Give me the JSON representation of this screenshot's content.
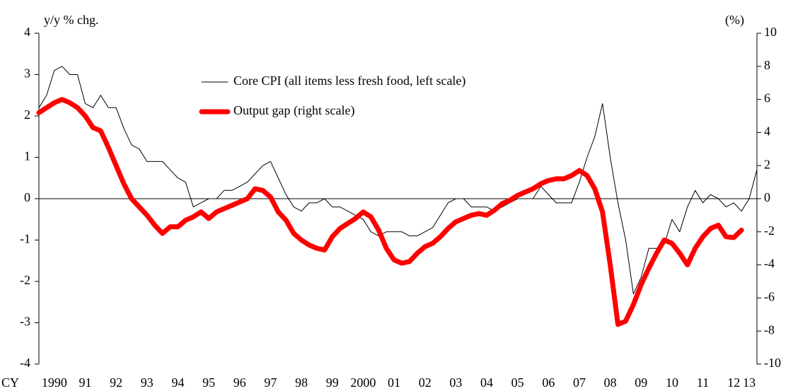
{
  "chart_data": {
    "type": "line",
    "y_label": "y/y % chg.",
    "y2_label": "(%)",
    "x_label": "CY",
    "categories": [
      null,
      null,
      "1990",
      null,
      null,
      null,
      "91",
      null,
      null,
      null,
      "92",
      null,
      null,
      null,
      "93",
      null,
      null,
      null,
      "94",
      null,
      null,
      null,
      "95",
      null,
      null,
      null,
      "96",
      null,
      null,
      null,
      "97",
      null,
      null,
      null,
      "98",
      null,
      null,
      null,
      "99",
      null,
      null,
      null,
      "2000",
      null,
      null,
      null,
      "01",
      null,
      null,
      null,
      "02",
      null,
      null,
      null,
      "03",
      null,
      null,
      null,
      "04",
      null,
      null,
      null,
      "05",
      null,
      null,
      null,
      "06",
      null,
      null,
      null,
      "07",
      null,
      null,
      null,
      "08",
      null,
      null,
      null,
      "09",
      null,
      null,
      null,
      "10",
      null,
      null,
      null,
      "11",
      null,
      null,
      null,
      "12",
      null,
      "13",
      null
    ],
    "series": [
      {
        "name": "Core CPI (all items less fresh food, left scale)",
        "color": "#000000",
        "width": 1,
        "values": [
          2.2,
          2.5,
          3.1,
          3.2,
          3.0,
          3.0,
          2.3,
          2.2,
          2.5,
          2.2,
          2.2,
          1.7,
          1.3,
          1.2,
          0.9,
          0.9,
          0.9,
          0.7,
          0.5,
          0.4,
          -0.2,
          -0.1,
          0.0,
          0.0,
          0.2,
          0.2,
          0.3,
          0.4,
          0.6,
          0.8,
          0.9,
          0.5,
          0.1,
          -0.2,
          -0.3,
          -0.1,
          -0.1,
          0.0,
          -0.2,
          -0.2,
          -0.3,
          -0.4,
          -0.5,
          -0.8,
          -0.9,
          -0.8,
          -0.8,
          -0.8,
          -0.9,
          -0.9,
          -0.8,
          -0.7,
          -0.4,
          -0.1,
          0.0,
          0.0,
          -0.2,
          -0.2,
          -0.2,
          -0.3,
          -0.2,
          -0.1,
          0.0,
          0.0,
          0.0,
          0.3,
          0.1,
          -0.1,
          -0.1,
          -0.1,
          0.4,
          1.0,
          1.5,
          2.3,
          1.0,
          -0.1,
          -1.0,
          -2.3,
          -1.9,
          -1.2,
          -1.2,
          -1.1,
          -0.5,
          -0.8,
          -0.2,
          0.2,
          -0.1,
          0.1,
          0.0,
          -0.2,
          -0.1,
          -0.3,
          0.0,
          0.7
        ]
      },
      {
        "name": "Output gap (right scale)",
        "color": "#ff0000",
        "width": 7,
        "axis": "y2",
        "values": [
          5.2,
          5.5,
          5.8,
          6.0,
          5.8,
          5.5,
          5.0,
          4.3,
          4.1,
          3.1,
          2.0,
          0.9,
          0.0,
          -0.5,
          -1.0,
          -1.6,
          -2.1,
          -1.7,
          -1.7,
          -1.3,
          -1.1,
          -0.8,
          -1.2,
          -0.8,
          -0.6,
          -0.4,
          -0.2,
          0.0,
          0.6,
          0.5,
          0.1,
          -0.8,
          -1.3,
          -2.1,
          -2.5,
          -2.8,
          -3.0,
          -3.1,
          -2.3,
          -1.8,
          -1.5,
          -1.2,
          -0.8,
          -1.1,
          -1.9,
          -3.0,
          -3.7,
          -3.9,
          -3.8,
          -3.3,
          -2.9,
          -2.7,
          -2.3,
          -1.8,
          -1.4,
          -1.2,
          -1.0,
          -0.9,
          -1.0,
          -0.7,
          -0.3,
          -0.1,
          0.2,
          0.4,
          0.6,
          0.9,
          1.1,
          1.2,
          1.2,
          1.4,
          1.7,
          1.4,
          0.6,
          -0.8,
          -4.0,
          -7.6,
          -7.4,
          -6.4,
          -5.2,
          -4.2,
          -3.3,
          -2.5,
          -2.7,
          -3.3,
          -4.0,
          -3.0,
          -2.3,
          -1.8,
          -1.6,
          -2.3,
          -2.35,
          -1.9,
          null,
          null
        ]
      }
    ],
    "ylim": [
      -4,
      4
    ],
    "yticks": [
      -4,
      -3,
      -2,
      -1,
      0,
      1,
      2,
      3,
      4
    ],
    "y2lim": [
      -10,
      10
    ],
    "y2ticks": [
      -10,
      -8,
      -6,
      -4,
      -2,
      0,
      2,
      4,
      6,
      8,
      10
    ]
  }
}
